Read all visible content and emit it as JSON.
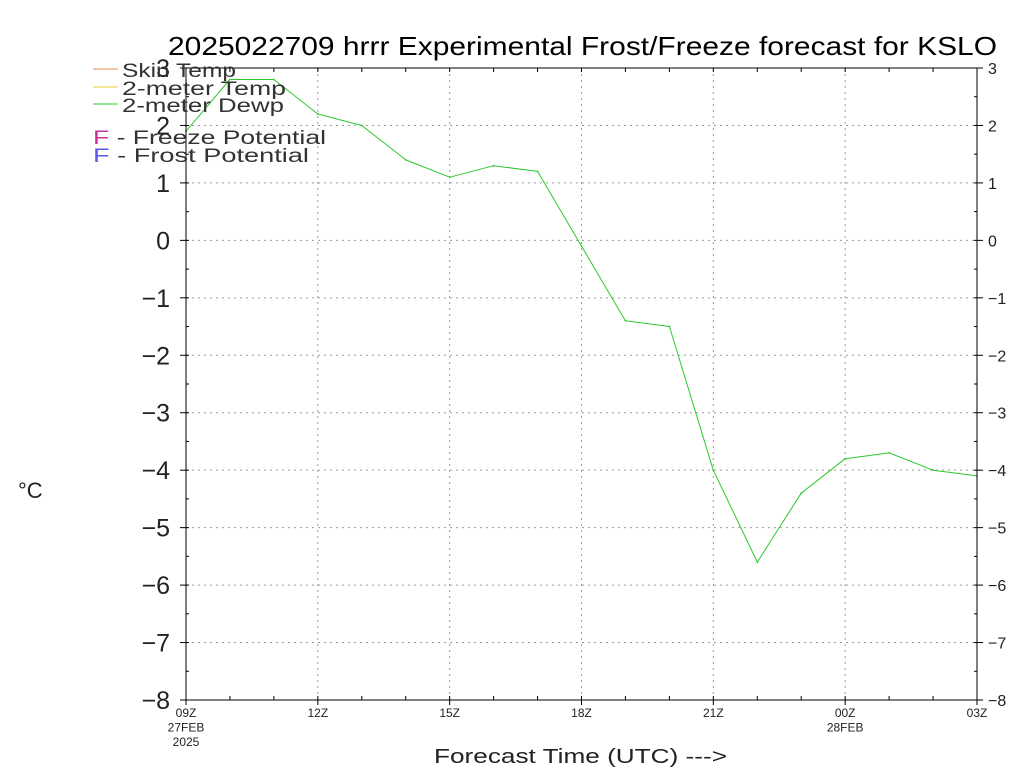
{
  "chart_data": {
    "type": "line",
    "title": "2025022709 hrrr Experimental Frost/Freeze forecast for KSLO",
    "xlabel": "Forecast Time (UTC) --->",
    "ylabel": "°C",
    "ylim": [
      -8,
      3
    ],
    "y_ticks": [
      "3",
      "2",
      "1",
      "0",
      "−1",
      "−2",
      "−3",
      "−4",
      "−5",
      "−6",
      "−7",
      "−8"
    ],
    "x": [
      "09Z",
      "10Z",
      "11Z",
      "12Z",
      "13Z",
      "14Z",
      "15Z",
      "16Z",
      "17Z",
      "18Z",
      "19Z",
      "20Z",
      "21Z",
      "22Z",
      "23Z",
      "00Z",
      "01Z",
      "02Z",
      "03Z"
    ],
    "x_ticks": [
      [
        "09Z",
        "27FEB",
        "2025"
      ],
      [
        "12Z"
      ],
      [
        "15Z"
      ],
      [
        "18Z"
      ],
      [
        "21Z"
      ],
      [
        "00Z",
        "28FEB"
      ],
      [
        "03Z"
      ]
    ],
    "grid": true,
    "legend": {
      "placement": "top-left",
      "items": [
        {
          "label": "Skin Temp",
          "color": "#f08a4b"
        },
        {
          "label": "2-meter Temp",
          "color": "#e6cc3a"
        },
        {
          "label": "2-meter Dewp",
          "color": "#2ec82e"
        }
      ],
      "markers": [
        {
          "letter": "F",
          "text": " - Freeze Potential",
          "color": "#c8329b"
        },
        {
          "letter": "F",
          "text": " - Frost Potential",
          "color": "#5a5ae6"
        }
      ]
    },
    "series": [
      {
        "name": "2-meter Dewp",
        "color": "#2ec82e",
        "values": [
          1.9,
          2.8,
          2.8,
          2.2,
          2.0,
          1.4,
          1.1,
          1.3,
          1.2,
          -0.1,
          -1.4,
          -1.5,
          -4.0,
          -5.6,
          -4.4,
          -3.8,
          -3.7,
          -4.0,
          -4.1
        ]
      }
    ]
  }
}
